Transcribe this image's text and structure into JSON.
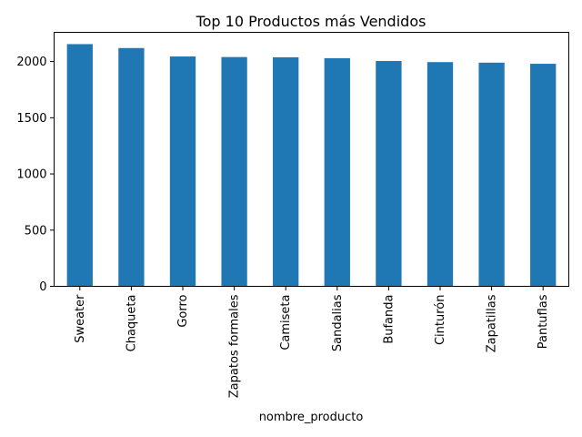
{
  "chart_data": {
    "type": "bar",
    "title": "Top 10 Productos más Vendidos",
    "xlabel": "nombre_producto",
    "ylabel": "",
    "categories": [
      "Sweater",
      "Chaqueta",
      "Gorro",
      "Zapatos formales",
      "Camiseta",
      "Sandalias",
      "Bufanda",
      "Cinturón",
      "Zapatillas",
      "Pantuflas"
    ],
    "values": [
      2155,
      2120,
      2045,
      2040,
      2038,
      2030,
      2005,
      1995,
      1990,
      1980
    ],
    "yticks": [
      "0",
      "500",
      "1000",
      "1500",
      "2000"
    ],
    "ylim": [
      0,
      2260
    ],
    "grid": false,
    "legend": "none",
    "bar_color": "#1f77b4"
  }
}
